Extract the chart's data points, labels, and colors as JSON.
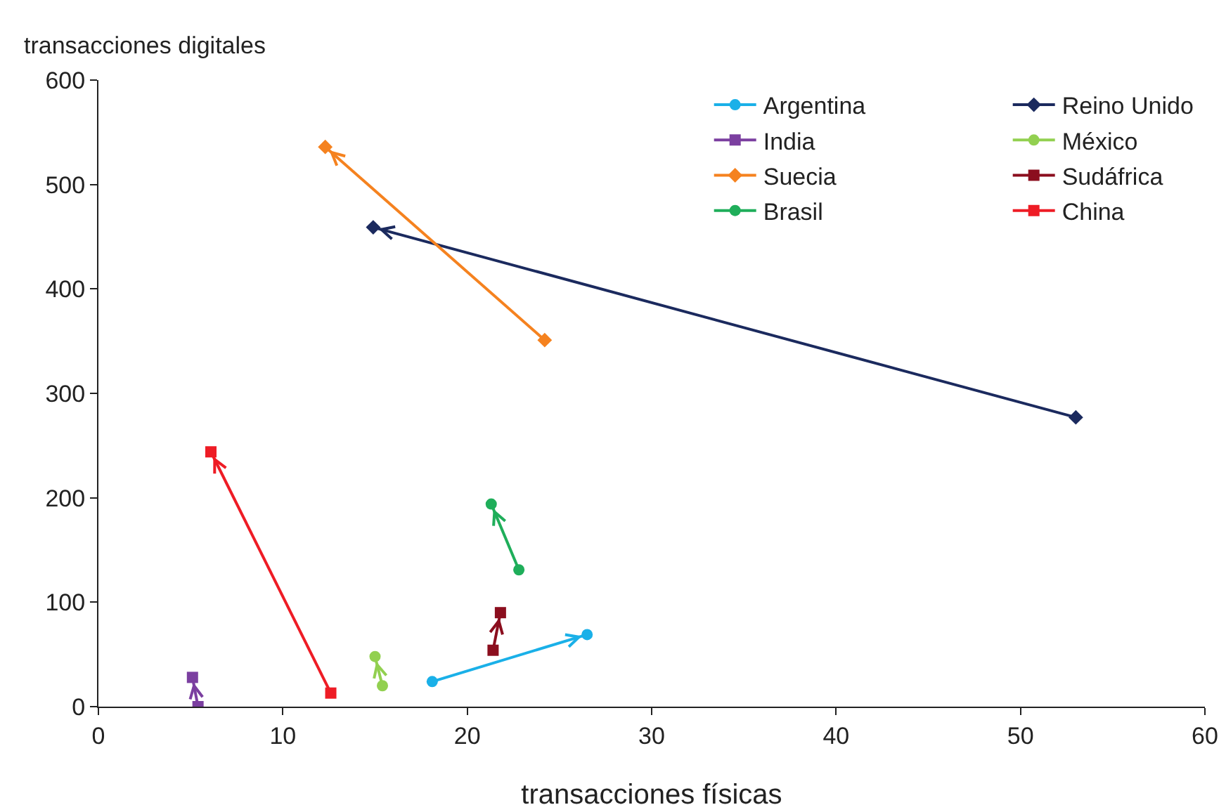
{
  "chart_data": {
    "type": "line",
    "xlabel": "transacciones físicas",
    "ylabel": "transacciones digitales",
    "xlim": [
      0,
      60
    ],
    "xticks": [
      0,
      10,
      20,
      30,
      40,
      50,
      60
    ],
    "ylim": [
      0,
      600
    ],
    "yticks": [
      0,
      100,
      200,
      300,
      400,
      500,
      600
    ],
    "grid": false,
    "legend": "top right",
    "line_style": "solid",
    "series": [
      {
        "name": "Argentina",
        "color": "#1ab0e8",
        "marker": "circle",
        "x": [
          18.1,
          26.5
        ],
        "values": [
          24,
          69
        ]
      },
      {
        "name": "Reino Unido",
        "color": "#1b2a5e",
        "marker": "diamond",
        "x": [
          53.0,
          14.9
        ],
        "values": [
          277,
          459
        ]
      },
      {
        "name": "India",
        "color": "#7b3fa0",
        "marker": "square",
        "x": [
          5.4,
          5.1
        ],
        "values": [
          0,
          28
        ]
      },
      {
        "name": "México",
        "color": "#92d050",
        "marker": "circle",
        "x": [
          15.4,
          15.0
        ],
        "values": [
          20,
          48
        ]
      },
      {
        "name": "Suecia",
        "color": "#f5821f",
        "marker": "diamond",
        "x": [
          24.2,
          12.3
        ],
        "values": [
          351,
          536
        ]
      },
      {
        "name": "Sudáfrica",
        "color": "#8b0e1e",
        "marker": "square",
        "x": [
          21.4,
          21.8
        ],
        "values": [
          54,
          90
        ]
      },
      {
        "name": "Brasil",
        "color": "#1fae5a",
        "marker": "circle",
        "x": [
          22.8,
          21.3
        ],
        "values": [
          131,
          194
        ]
      },
      {
        "name": "China",
        "color": "#ee1c25",
        "marker": "square",
        "x": [
          12.6,
          6.1
        ],
        "values": [
          13,
          244
        ]
      }
    ]
  }
}
